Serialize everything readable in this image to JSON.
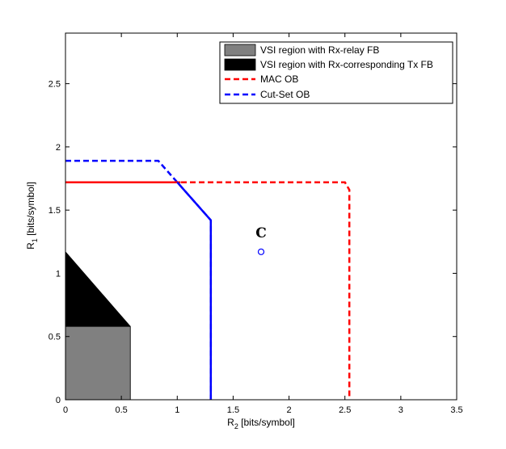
{
  "chart_data": {
    "type": "area",
    "xlabel": "R",
    "xlabel_sub": "2",
    "xlabel_unit": " [bits/symbol]",
    "ylabel": "R",
    "ylabel_sub": "1",
    "ylabel_unit": " [bits/symbol]",
    "xlim": [
      0,
      3.5
    ],
    "ylim": [
      0,
      2.9
    ],
    "xticks": [
      0,
      0.5,
      1,
      1.5,
      2,
      2.5,
      3,
      3.5
    ],
    "xtick_labels": [
      "0",
      "0.5",
      "1",
      "1.5",
      "2",
      "2.5",
      "3",
      "3.5"
    ],
    "yticks": [
      0,
      0.5,
      1,
      1.5,
      2,
      2.5
    ],
    "ytick_labels": [
      "0",
      "0.5",
      "1",
      "1.5",
      "2",
      "2.5"
    ],
    "grid": false,
    "legend_position": "top-right",
    "regions": [
      {
        "name": "VSI region with Rx-corresponding Tx FB",
        "color": "#000000",
        "points": [
          [
            0,
            0
          ],
          [
            0,
            1.17
          ],
          [
            0.58,
            0.58
          ],
          [
            0.58,
            0
          ]
        ]
      },
      {
        "name": "VSI region with Rx-relay FB",
        "color": "#808080",
        "points": [
          [
            0,
            0
          ],
          [
            0,
            0.58
          ],
          [
            0.58,
            0.58
          ],
          [
            0.58,
            0
          ]
        ]
      }
    ],
    "series": [
      {
        "name": "MAC OB",
        "color": "#ff0000",
        "style": "dashed",
        "points": [
          [
            0,
            1.72
          ],
          [
            2.5,
            1.72
          ],
          [
            2.54,
            1.66
          ],
          [
            2.54,
            0
          ]
        ]
      },
      {
        "name": "Cut-Set OB",
        "color": "#0000ff",
        "style": "dashed",
        "points": [
          [
            0,
            1.89
          ],
          [
            0.83,
            1.89
          ],
          [
            1.3,
            1.42
          ],
          [
            1.3,
            0
          ]
        ]
      }
    ],
    "solid_overlays": [
      {
        "series": "MAC OB",
        "color": "#ff0000",
        "points": [
          [
            0,
            1.72
          ],
          [
            1.03,
            1.72
          ]
        ]
      },
      {
        "series": "Cut-Set OB",
        "color": "#0000ff",
        "points": [
          [
            1.0,
            1.72
          ],
          [
            1.3,
            1.42
          ],
          [
            1.3,
            0
          ]
        ]
      }
    ],
    "annotations": [
      {
        "label": "C",
        "x": 1.75,
        "y": 1.17,
        "marker": "circle",
        "marker_color": "#0000ff"
      }
    ]
  }
}
